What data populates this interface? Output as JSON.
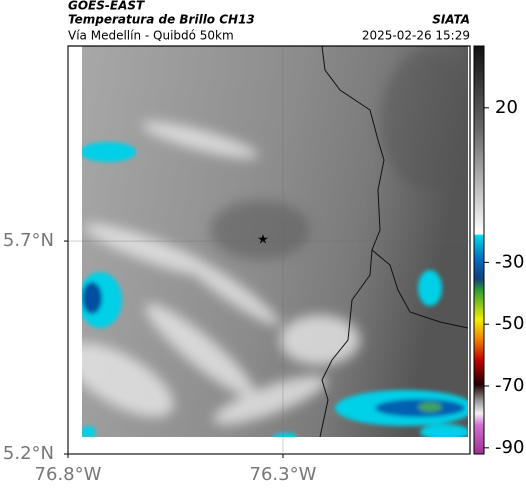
{
  "header": {
    "satellite": "GOES-EAST",
    "product": "Temperatura de Brillo CH13",
    "route": "Vía Medellín - Quibdó 50km",
    "source": "SIATA",
    "datetime": "2025-02-26 15:29"
  },
  "map": {
    "xlim": [
      -76.8,
      -75.865
    ],
    "ylim": [
      5.2,
      6.158
    ],
    "xticks": [
      {
        "value": -76.8,
        "label": "76.8°W"
      },
      {
        "value": -76.3,
        "label": "76.3°W"
      }
    ],
    "yticks": [
      {
        "value": 5.2,
        "label": "5.2°N"
      },
      {
        "value": 5.7,
        "label": "5.7°N"
      }
    ]
  },
  "colorbar": {
    "lim": [
      -92,
      40
    ],
    "ticks": [
      20,
      -30,
      -50,
      -70,
      -90
    ]
  }
}
